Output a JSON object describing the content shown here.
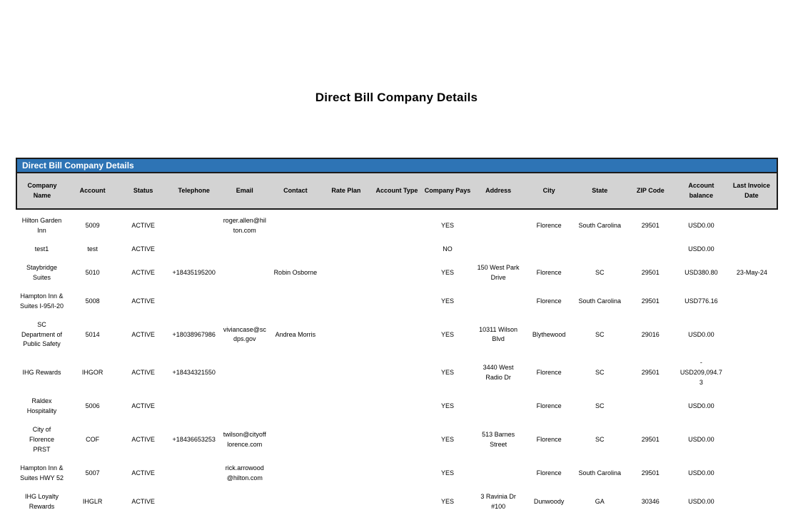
{
  "page": {
    "title": "Direct Bill Company Details"
  },
  "colors": {
    "table_title_bar_blue": "#2E74B5",
    "column_header_gray": "#D3D3D3",
    "border_dark": "#1B1B1B"
  },
  "table": {
    "title": "Direct Bill Company Details",
    "columns": [
      "Company Name",
      "Account",
      "Status",
      "Telephone",
      "Email",
      "Contact",
      "Rate Plan",
      "Account Type",
      "Company Pays",
      "Address",
      "City",
      "State",
      "ZIP Code",
      "Account balance",
      "Last Invoice Date"
    ],
    "rows": [
      [
        "Hilton Garden Inn",
        "5009",
        "ACTIVE",
        "",
        "roger.allen@hilton.com",
        "",
        "",
        "",
        "YES",
        "",
        "Florence",
        "South Carolina",
        "29501",
        "USD0.00",
        ""
      ],
      [
        "test1",
        "test",
        "ACTIVE",
        "",
        "",
        "",
        "",
        "",
        "NO",
        "",
        "",
        "",
        "",
        "USD0.00",
        ""
      ],
      [
        "Staybridge Suites",
        "5010",
        "ACTIVE",
        "+18435195200",
        "",
        "Robin Osborne",
        "",
        "",
        "YES",
        "150 West Park Drive",
        "Florence",
        "SC",
        "29501",
        "USD380.80",
        "23-May-24"
      ],
      [
        "Hampton Inn & Suites I-95/I-20",
        "5008",
        "ACTIVE",
        "",
        "",
        "",
        "",
        "",
        "YES",
        "",
        "Florence",
        "South Carolina",
        "29501",
        "USD776.16",
        ""
      ],
      [
        "SC Department of Public Safety",
        "5014",
        "ACTIVE",
        "+18038967986",
        "viviancase@scdps.gov",
        "Andrea Morris",
        "",
        "",
        "YES",
        "10311 Wilson Blvd",
        "Blythewood",
        "SC",
        "29016",
        "USD0.00",
        ""
      ],
      [
        "IHG Rewards",
        "IHGOR",
        "ACTIVE",
        "+18434321550",
        "",
        "",
        "",
        "",
        "YES",
        "3440 West Radio Dr",
        "Florence",
        "SC",
        "29501",
        "-USD209,094.73",
        ""
      ],
      [
        "Raldex Hospitality",
        "5006",
        "ACTIVE",
        "",
        "",
        "",
        "",
        "",
        "YES",
        "",
        "Florence",
        "SC",
        "",
        "USD0.00",
        ""
      ],
      [
        "City of Florence PRST",
        "COF",
        "ACTIVE",
        "+18436653253",
        "twilson@cityofflorence.com",
        "",
        "",
        "",
        "YES",
        "513 Barnes Street",
        "Florence",
        "SC",
        "29501",
        "USD0.00",
        ""
      ],
      [
        "Hampton Inn & Suites HWY 52",
        "5007",
        "ACTIVE",
        "",
        "rick.arrowood@hilton.com",
        "",
        "",
        "",
        "YES",
        "",
        "Florence",
        "South Carolina",
        "29501",
        "USD0.00",
        ""
      ],
      [
        "IHG Loyalty Rewards",
        "IHGLR",
        "ACTIVE",
        "",
        "",
        "",
        "",
        "",
        "YES",
        "3 Ravinia Dr #100",
        "Dunwoody",
        "GA",
        "30346",
        "USD0.00",
        ""
      ]
    ]
  }
}
